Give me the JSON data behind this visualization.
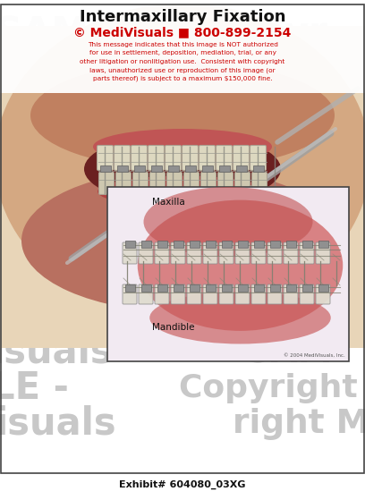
{
  "title": "Intermaxillary Fixation",
  "copyright_line": "© MediVisuals ■ 800-899-2154",
  "disclaimer_line1": "This message indicates that this image is NOT authorized",
  "disclaimer_line2": "for use in settlement, deposition, mediation, trial, or any",
  "disclaimer_line3": "other litigation or nonlitigation use.  Consistent with copyright",
  "disclaimer_line4": "laws, unauthorized use or reproduction of this image (or",
  "disclaimer_line5": "parts thereof) is subject to a maximum $150,000 fine.",
  "label_maxilla": "Maxilla",
  "label_mandible": "Mandible",
  "exhibit_text": "Exhibit# 604080_03XG",
  "copyright_small": "© 2004 MediVisuals, Inc.",
  "bg_color": "#ffffff",
  "wm_color": "#c8c8c8",
  "title_color": "#111111",
  "red_color": "#cc0000",
  "exhibit_color": "#111111",
  "fig_width": 4.08,
  "fig_height": 5.59,
  "dpi": 100
}
